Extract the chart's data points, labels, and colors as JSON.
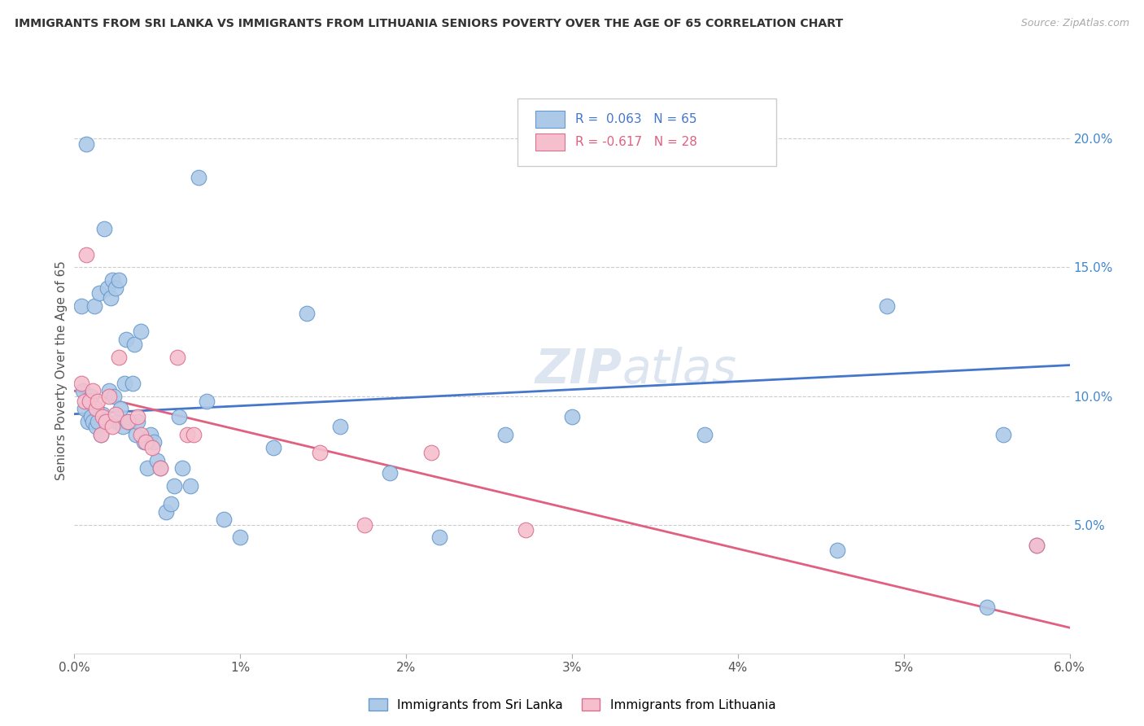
{
  "title": "IMMIGRANTS FROM SRI LANKA VS IMMIGRANTS FROM LITHUANIA SENIORS POVERTY OVER THE AGE OF 65 CORRELATION CHART",
  "source": "Source: ZipAtlas.com",
  "ylabel": "Seniors Poverty Over the Age of 65",
  "legend_sri_lanka_r": "R =  0.063",
  "legend_sri_lanka_n": "N = 65",
  "legend_lithuania_r": "R = -0.617",
  "legend_lithuania_n": "N = 28",
  "sri_lanka_color": "#adc9e8",
  "sri_lanka_edge": "#6699cc",
  "lithuania_color": "#f5bfce",
  "lithuania_edge": "#d97090",
  "line_sri_lanka_color": "#4477cc",
  "line_lithuania_color": "#e06080",
  "watermark_color": "#dde5f0",
  "background_color": "#ffffff",
  "sri_lanka_line_x0": 0.0,
  "sri_lanka_line_y0": 9.3,
  "sri_lanka_line_x1": 6.0,
  "sri_lanka_line_y1": 11.2,
  "lithuania_line_x0": 0.0,
  "lithuania_line_y0": 10.2,
  "lithuania_line_x1": 6.0,
  "lithuania_line_y1": 1.0,
  "sri_lanka_x": [
    0.04,
    0.05,
    0.06,
    0.07,
    0.08,
    0.09,
    0.1,
    0.1,
    0.11,
    0.12,
    0.13,
    0.14,
    0.15,
    0.16,
    0.17,
    0.18,
    0.19,
    0.2,
    0.21,
    0.22,
    0.23,
    0.24,
    0.25,
    0.26,
    0.27,
    0.28,
    0.29,
    0.3,
    0.31,
    0.32,
    0.33,
    0.35,
    0.36,
    0.37,
    0.38,
    0.4,
    0.42,
    0.44,
    0.46,
    0.48,
    0.5,
    0.52,
    0.55,
    0.58,
    0.6,
    0.63,
    0.65,
    0.7,
    0.75,
    0.8,
    0.9,
    1.0,
    1.2,
    1.4,
    1.6,
    1.9,
    2.2,
    2.6,
    3.0,
    3.8,
    4.6,
    4.9,
    5.5,
    5.6,
    5.8
  ],
  "sri_lanka_y": [
    13.5,
    10.2,
    9.5,
    19.8,
    9.0,
    9.8,
    10.0,
    9.2,
    9.0,
    13.5,
    8.8,
    9.0,
    14.0,
    8.5,
    9.3,
    16.5,
    9.0,
    14.2,
    10.2,
    13.8,
    14.5,
    10.0,
    14.2,
    9.0,
    14.5,
    9.5,
    8.8,
    10.5,
    12.2,
    9.0,
    9.0,
    10.5,
    12.0,
    8.5,
    9.0,
    12.5,
    8.2,
    7.2,
    8.5,
    8.2,
    7.5,
    7.2,
    5.5,
    5.8,
    6.5,
    9.2,
    7.2,
    6.5,
    18.5,
    9.8,
    5.2,
    4.5,
    8.0,
    13.2,
    8.8,
    7.0,
    4.5,
    8.5,
    9.2,
    8.5,
    4.0,
    13.5,
    1.8,
    8.5,
    4.2
  ],
  "lithuania_x": [
    0.04,
    0.06,
    0.07,
    0.09,
    0.11,
    0.13,
    0.14,
    0.16,
    0.17,
    0.19,
    0.21,
    0.23,
    0.25,
    0.27,
    0.32,
    0.38,
    0.4,
    0.43,
    0.47,
    0.52,
    0.62,
    0.68,
    0.72,
    1.48,
    1.75,
    2.15,
    2.72,
    5.8
  ],
  "lithuania_y": [
    10.5,
    9.8,
    15.5,
    9.8,
    10.2,
    9.5,
    9.8,
    8.5,
    9.2,
    9.0,
    10.0,
    8.8,
    9.3,
    11.5,
    9.0,
    9.2,
    8.5,
    8.2,
    8.0,
    7.2,
    11.5,
    8.5,
    8.5,
    7.8,
    5.0,
    7.8,
    4.8,
    4.2
  ],
  "xmin": 0.0,
  "xmax": 6.0,
  "ymin": 0.0,
  "ymax": 22.0,
  "ytick_vals": [
    5.0,
    10.0,
    15.0,
    20.0
  ],
  "ytick_labels": [
    "5.0%",
    "10.0%",
    "15.0%",
    "20.0%"
  ],
  "xtick_vals": [
    0.0,
    1.0,
    2.0,
    3.0,
    4.0,
    5.0,
    6.0
  ],
  "xtick_labels": [
    "0.0%",
    "1%",
    "2%",
    "3%",
    "4%",
    "5%",
    "6.0%"
  ]
}
